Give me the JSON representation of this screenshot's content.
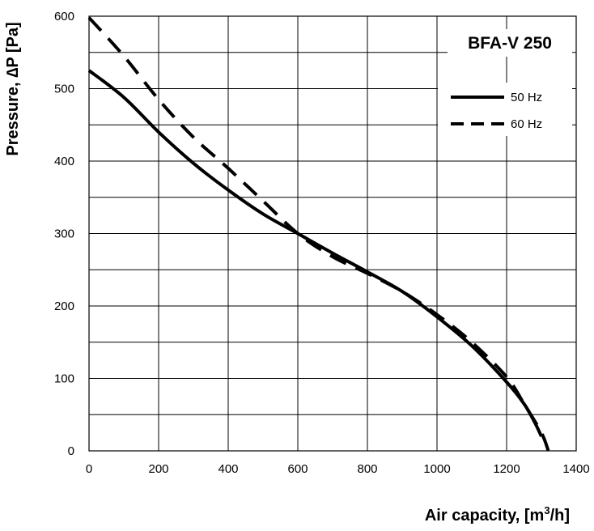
{
  "chart_data": {
    "type": "line",
    "title": "BFA-V 250",
    "xlabel": "Air capacity, [m",
    "xlabel_sup": "3",
    "xlabel_end": "/h]",
    "ylabel": "Pressure, ∆P [Pa]",
    "xlim": [
      0,
      1400
    ],
    "ylim": [
      0,
      600
    ],
    "x_ticks": [
      0,
      200,
      400,
      600,
      800,
      1000,
      1200,
      1400
    ],
    "y_ticks": [
      0,
      100,
      200,
      300,
      400,
      500,
      600
    ],
    "grid": true,
    "legend_position": "top-right",
    "series": [
      {
        "name": "50 Hz",
        "style": "solid",
        "x": [
          0,
          100,
          200,
          300,
          400,
          500,
          600,
          700,
          800,
          900,
          1000,
          1100,
          1200,
          1250,
          1280,
          1300
        ],
        "y": [
          525,
          488,
          440,
          397,
          360,
          327,
          300,
          273,
          247,
          220,
          185,
          145,
          95,
          65,
          40,
          20
        ]
      },
      {
        "name": "60 Hz",
        "style": "dashed",
        "x": [
          0,
          100,
          200,
          300,
          400,
          500,
          600,
          700,
          800,
          900,
          1000,
          1100,
          1200,
          1250,
          1300,
          1320
        ],
        "y": [
          598,
          545,
          485,
          433,
          390,
          345,
          300,
          268,
          245,
          220,
          188,
          150,
          102,
          65,
          25,
          0
        ]
      }
    ]
  }
}
